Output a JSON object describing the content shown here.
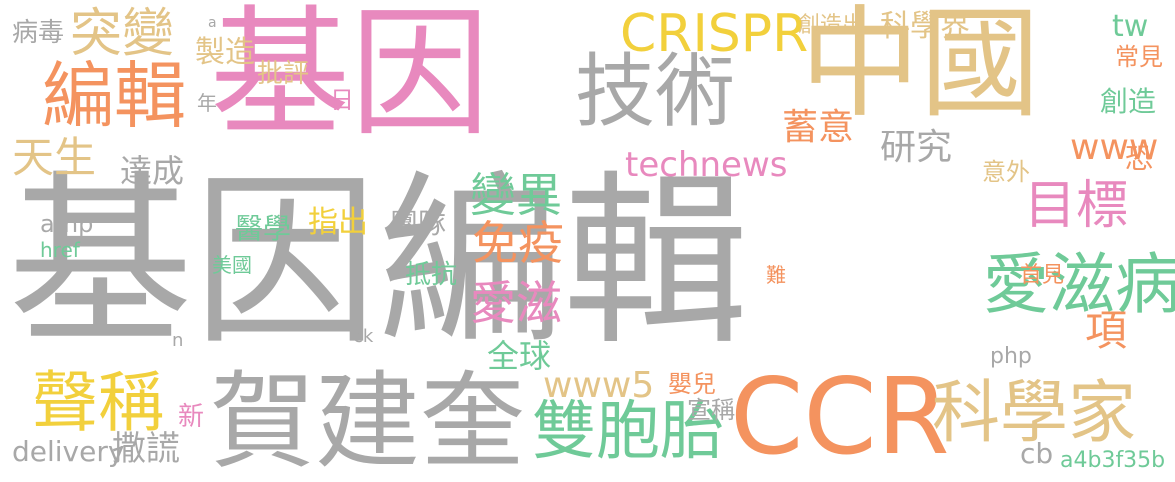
{
  "palette": {
    "gray": "#a8a8a8",
    "pink": "#e889be",
    "tan": "#e3c487",
    "orange": "#f4935f",
    "green": "#6fca98",
    "yellow": "#f2d03c",
    "lightgray": "#c9c9c9"
  },
  "words": [
    {
      "text": "基因編輯",
      "color": "gray"
    },
    {
      "text": "基因",
      "color": "pink"
    },
    {
      "text": "中國",
      "color": "tan"
    },
    {
      "text": "賀建奎",
      "color": "gray"
    },
    {
      "text": "CCR",
      "color": "orange"
    },
    {
      "text": "技術",
      "color": "gray"
    },
    {
      "text": "編輯",
      "color": "orange"
    },
    {
      "text": "突變",
      "color": "tan"
    },
    {
      "text": "雙胞胎",
      "color": "green"
    },
    {
      "text": "科學家",
      "color": "tan"
    },
    {
      "text": "聲稱",
      "color": "yellow"
    },
    {
      "text": "愛滋病",
      "color": "green"
    },
    {
      "text": "CRISPR",
      "color": "yellow"
    },
    {
      "text": "目標",
      "color": "pink"
    },
    {
      "text": "變異",
      "color": "green"
    },
    {
      "text": "免疫",
      "color": "orange"
    },
    {
      "text": "愛滋",
      "color": "pink"
    },
    {
      "text": "天生",
      "color": "tan"
    },
    {
      "text": "technews",
      "color": "pink"
    },
    {
      "text": "研究",
      "color": "gray"
    },
    {
      "text": "蓄意",
      "color": "orange"
    },
    {
      "text": "科學界",
      "color": "tan"
    },
    {
      "text": "www",
      "color": "orange"
    },
    {
      "text": "tw",
      "color": "green"
    },
    {
      "text": "病毒",
      "color": "gray"
    },
    {
      "text": "製造",
      "color": "tan"
    },
    {
      "text": "全球",
      "color": "green"
    },
    {
      "text": "撒謊",
      "color": "gray"
    },
    {
      "text": "www5",
      "color": "tan"
    },
    {
      "text": "項",
      "color": "orange"
    },
    {
      "text": "達成",
      "color": "gray"
    },
    {
      "text": "醫學",
      "color": "green"
    },
    {
      "text": "指出",
      "color": "yellow"
    },
    {
      "text": "團隊",
      "color": "gray"
    },
    {
      "text": "創造",
      "color": "green"
    },
    {
      "text": "恐",
      "color": "orange"
    },
    {
      "text": "常見",
      "color": "orange"
    },
    {
      "text": "意外",
      "color": "tan"
    },
    {
      "text": "抵抗",
      "color": "green"
    },
    {
      "text": "嬰兒",
      "color": "orange"
    },
    {
      "text": "宣稱",
      "color": "gray"
    },
    {
      "text": "delivery",
      "color": "gray"
    },
    {
      "text": "cb",
      "color": "gray"
    },
    {
      "text": "a4b3f35b",
      "color": "green"
    },
    {
      "text": "php",
      "color": "gray"
    },
    {
      "text": "amp",
      "color": "gray"
    },
    {
      "text": "href",
      "color": "green"
    },
    {
      "text": "批評",
      "color": "tan"
    },
    {
      "text": "首見",
      "color": "orange"
    },
    {
      "text": "美國",
      "color": "green"
    },
    {
      "text": "新",
      "color": "pink"
    },
    {
      "text": "年",
      "color": "gray"
    },
    {
      "text": "創造出",
      "color": "tan"
    },
    {
      "text": "日",
      "color": "pink"
    },
    {
      "text": "難",
      "color": "orange"
    },
    {
      "text": "ck",
      "color": "gray"
    },
    {
      "text": "n",
      "color": "gray"
    },
    {
      "text": "a",
      "color": "gray"
    }
  ]
}
